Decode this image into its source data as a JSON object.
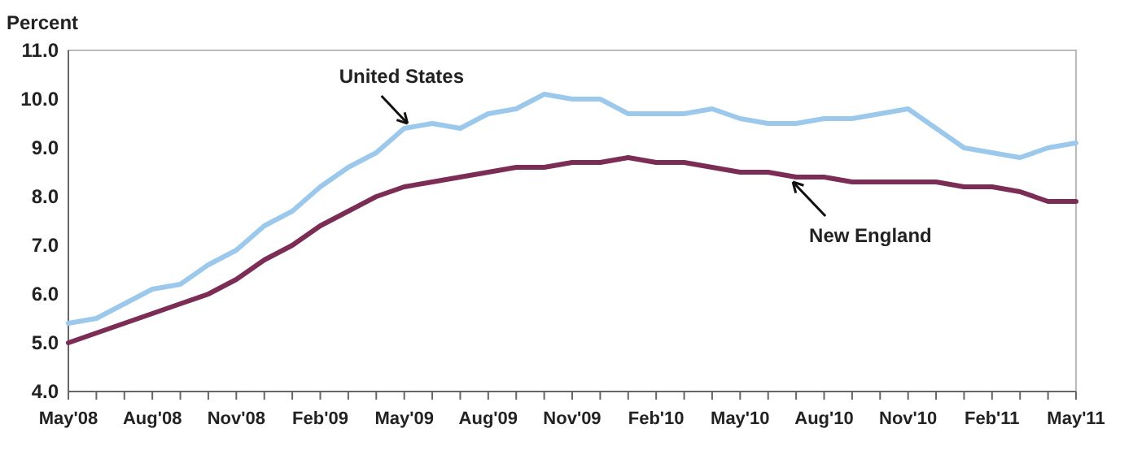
{
  "chart_data": {
    "type": "line",
    "ylabel": "Percent",
    "categories": [
      "May'08",
      null,
      null,
      "Aug'08",
      null,
      null,
      "Nov'08",
      null,
      null,
      "Feb'09",
      null,
      null,
      "May'09",
      null,
      null,
      "Aug'09",
      null,
      null,
      "Nov'09",
      null,
      null,
      "Feb'10",
      null,
      null,
      "May'10",
      null,
      null,
      "Aug'10",
      null,
      null,
      "Nov'10",
      null,
      null,
      "Feb'11",
      null,
      null,
      "May'11"
    ],
    "series": [
      {
        "name": "United States",
        "color": "#9cc8ec",
        "values": [
          5.4,
          5.5,
          5.8,
          6.1,
          6.2,
          6.6,
          6.9,
          7.4,
          7.7,
          8.2,
          8.6,
          8.9,
          9.4,
          9.5,
          9.4,
          9.7,
          9.8,
          10.1,
          10.0,
          10.0,
          9.7,
          9.7,
          9.7,
          9.8,
          9.6,
          9.5,
          9.5,
          9.6,
          9.6,
          9.7,
          9.8,
          9.4,
          9.0,
          8.9,
          8.8,
          9.0,
          9.1
        ]
      },
      {
        "name": "New England",
        "color": "#7b2d55",
        "values": [
          5.0,
          5.2,
          5.4,
          5.6,
          5.8,
          6.0,
          6.3,
          6.7,
          7.0,
          7.4,
          7.7,
          8.0,
          8.2,
          8.3,
          8.4,
          8.5,
          8.6,
          8.6,
          8.7,
          8.7,
          8.8,
          8.7,
          8.7,
          8.6,
          8.5,
          8.5,
          8.4,
          8.4,
          8.3,
          8.3,
          8.3,
          8.3,
          8.2,
          8.2,
          8.1,
          7.9,
          7.9
        ]
      }
    ],
    "ylim": [
      4,
      11
    ],
    "yticks": [
      {
        "value": 4,
        "label": "4.0"
      },
      {
        "value": 5,
        "label": "5.0"
      },
      {
        "value": 6,
        "label": "6.0"
      },
      {
        "value": 7,
        "label": "7.0"
      },
      {
        "value": 8,
        "label": "8.0"
      },
      {
        "value": 9,
        "label": "9.0"
      },
      {
        "value": 10,
        "label": "10.0"
      },
      {
        "value": 11,
        "label": "11.0"
      }
    ],
    "grid": false,
    "marker": "none",
    "line_style": "solid"
  }
}
